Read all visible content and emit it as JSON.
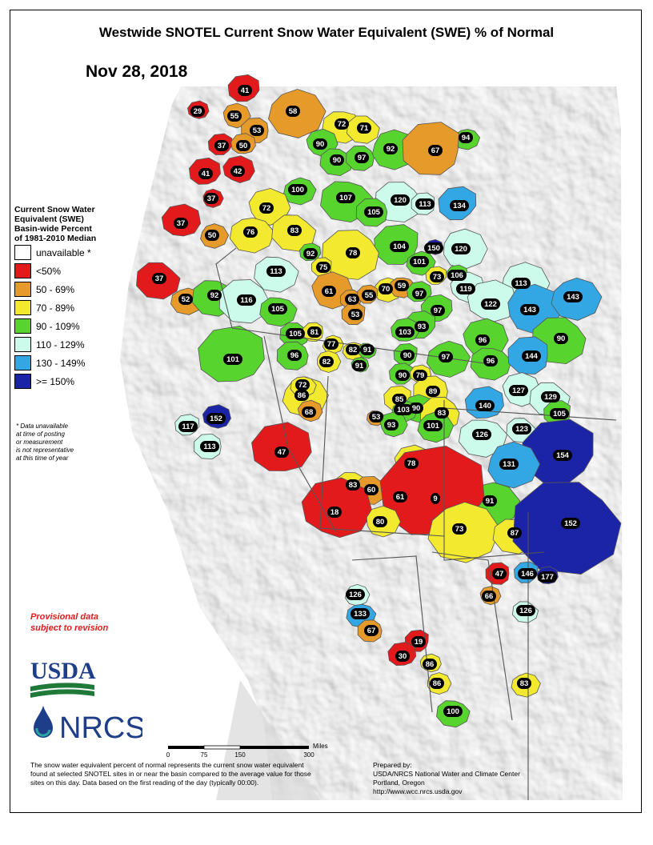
{
  "title": "Westwide SNOTEL Current Snow Water Equivalent (SWE) % of Normal",
  "date": "Nov 28, 2018",
  "legend": {
    "title_lines": [
      "Current Snow Water",
      "Equivalent (SWE)",
      "Basin-wide Percent",
      "of 1981-2010 Median"
    ],
    "classes": [
      {
        "label": "unavailable *",
        "color": "#ffffff"
      },
      {
        "label": "<50%",
        "color": "#e31a1c"
      },
      {
        "label": "50 - 69%",
        "color": "#e69a29"
      },
      {
        "label": "70 - 89%",
        "color": "#f3ea2f"
      },
      {
        "label": "90 - 109%",
        "color": "#57d42e"
      },
      {
        "label": "110 - 129%",
        "color": "#ccfbeb"
      },
      {
        "label": "130 - 149%",
        "color": "#33a7e3"
      },
      {
        "label": ">= 150%",
        "color": "#1b24a6"
      }
    ],
    "note_lines": [
      "*  Data unavailable",
      "at time of posting",
      "or measurement",
      "is not representative",
      "at this time of year"
    ]
  },
  "provisional_lines": [
    "Provisional data",
    "subject to revision"
  ],
  "logos": {
    "usda": "USDA",
    "nrcs": "NRCS"
  },
  "scale_bar": {
    "ticks": [
      "0",
      "75",
      "150",
      "300"
    ],
    "unit": "Miles"
  },
  "footnote": "The snow water equivalent percent of normal represents the current snow water equivalent found at selected SNOTEL sites in or near the basin compared to the average value for those sites on this day. Data based on the first reading of the day (typically 00:00).",
  "prepared_lines": [
    "Prepared by:",
    "USDA/NRCS National Water and Climate Center",
    "Portland, Oregon",
    "http://www.wcc.nrcs.usda.gov"
  ],
  "basin_values": [
    "41",
    "29",
    "55",
    "58",
    "72",
    "71",
    "53",
    "37",
    "50",
    "90",
    "92",
    "94",
    "90",
    "97",
    "67",
    "41",
    "42",
    "37",
    "100",
    "107",
    "120",
    "113",
    "134",
    "37",
    "72",
    "50",
    "76",
    "83",
    "105",
    "104",
    "92",
    "150",
    "120",
    "101",
    "113",
    "78",
    "75",
    "73",
    "106",
    "61",
    "70",
    "59",
    "37",
    "63",
    "55",
    "97",
    "119",
    "113",
    "52",
    "92",
    "116",
    "53",
    "97",
    "122",
    "143",
    "143",
    "105",
    "105",
    "81",
    "93",
    "103",
    "96",
    "77",
    "82",
    "91",
    "96",
    "90",
    "101",
    "91",
    "82",
    "97",
    "96",
    "90",
    "144",
    "90",
    "79",
    "127",
    "86",
    "72",
    "129",
    "89",
    "85",
    "140",
    "68",
    "90",
    "103",
    "53",
    "83",
    "105",
    "117",
    "152",
    "93",
    "101",
    "126",
    "123",
    "113",
    "154",
    "47",
    "78",
    "131",
    "91",
    "83",
    "60",
    "61",
    "9",
    "18",
    "80",
    "73",
    "87",
    "152",
    "47",
    "146",
    "177",
    "66",
    "126",
    "133",
    "126",
    "67",
    "19",
    "30",
    "86",
    "86",
    "83",
    "100"
  ],
  "colors": {
    "land_background": "#e9e9e9",
    "basin_outline": "#555555",
    "map_frame": "#000000"
  }
}
